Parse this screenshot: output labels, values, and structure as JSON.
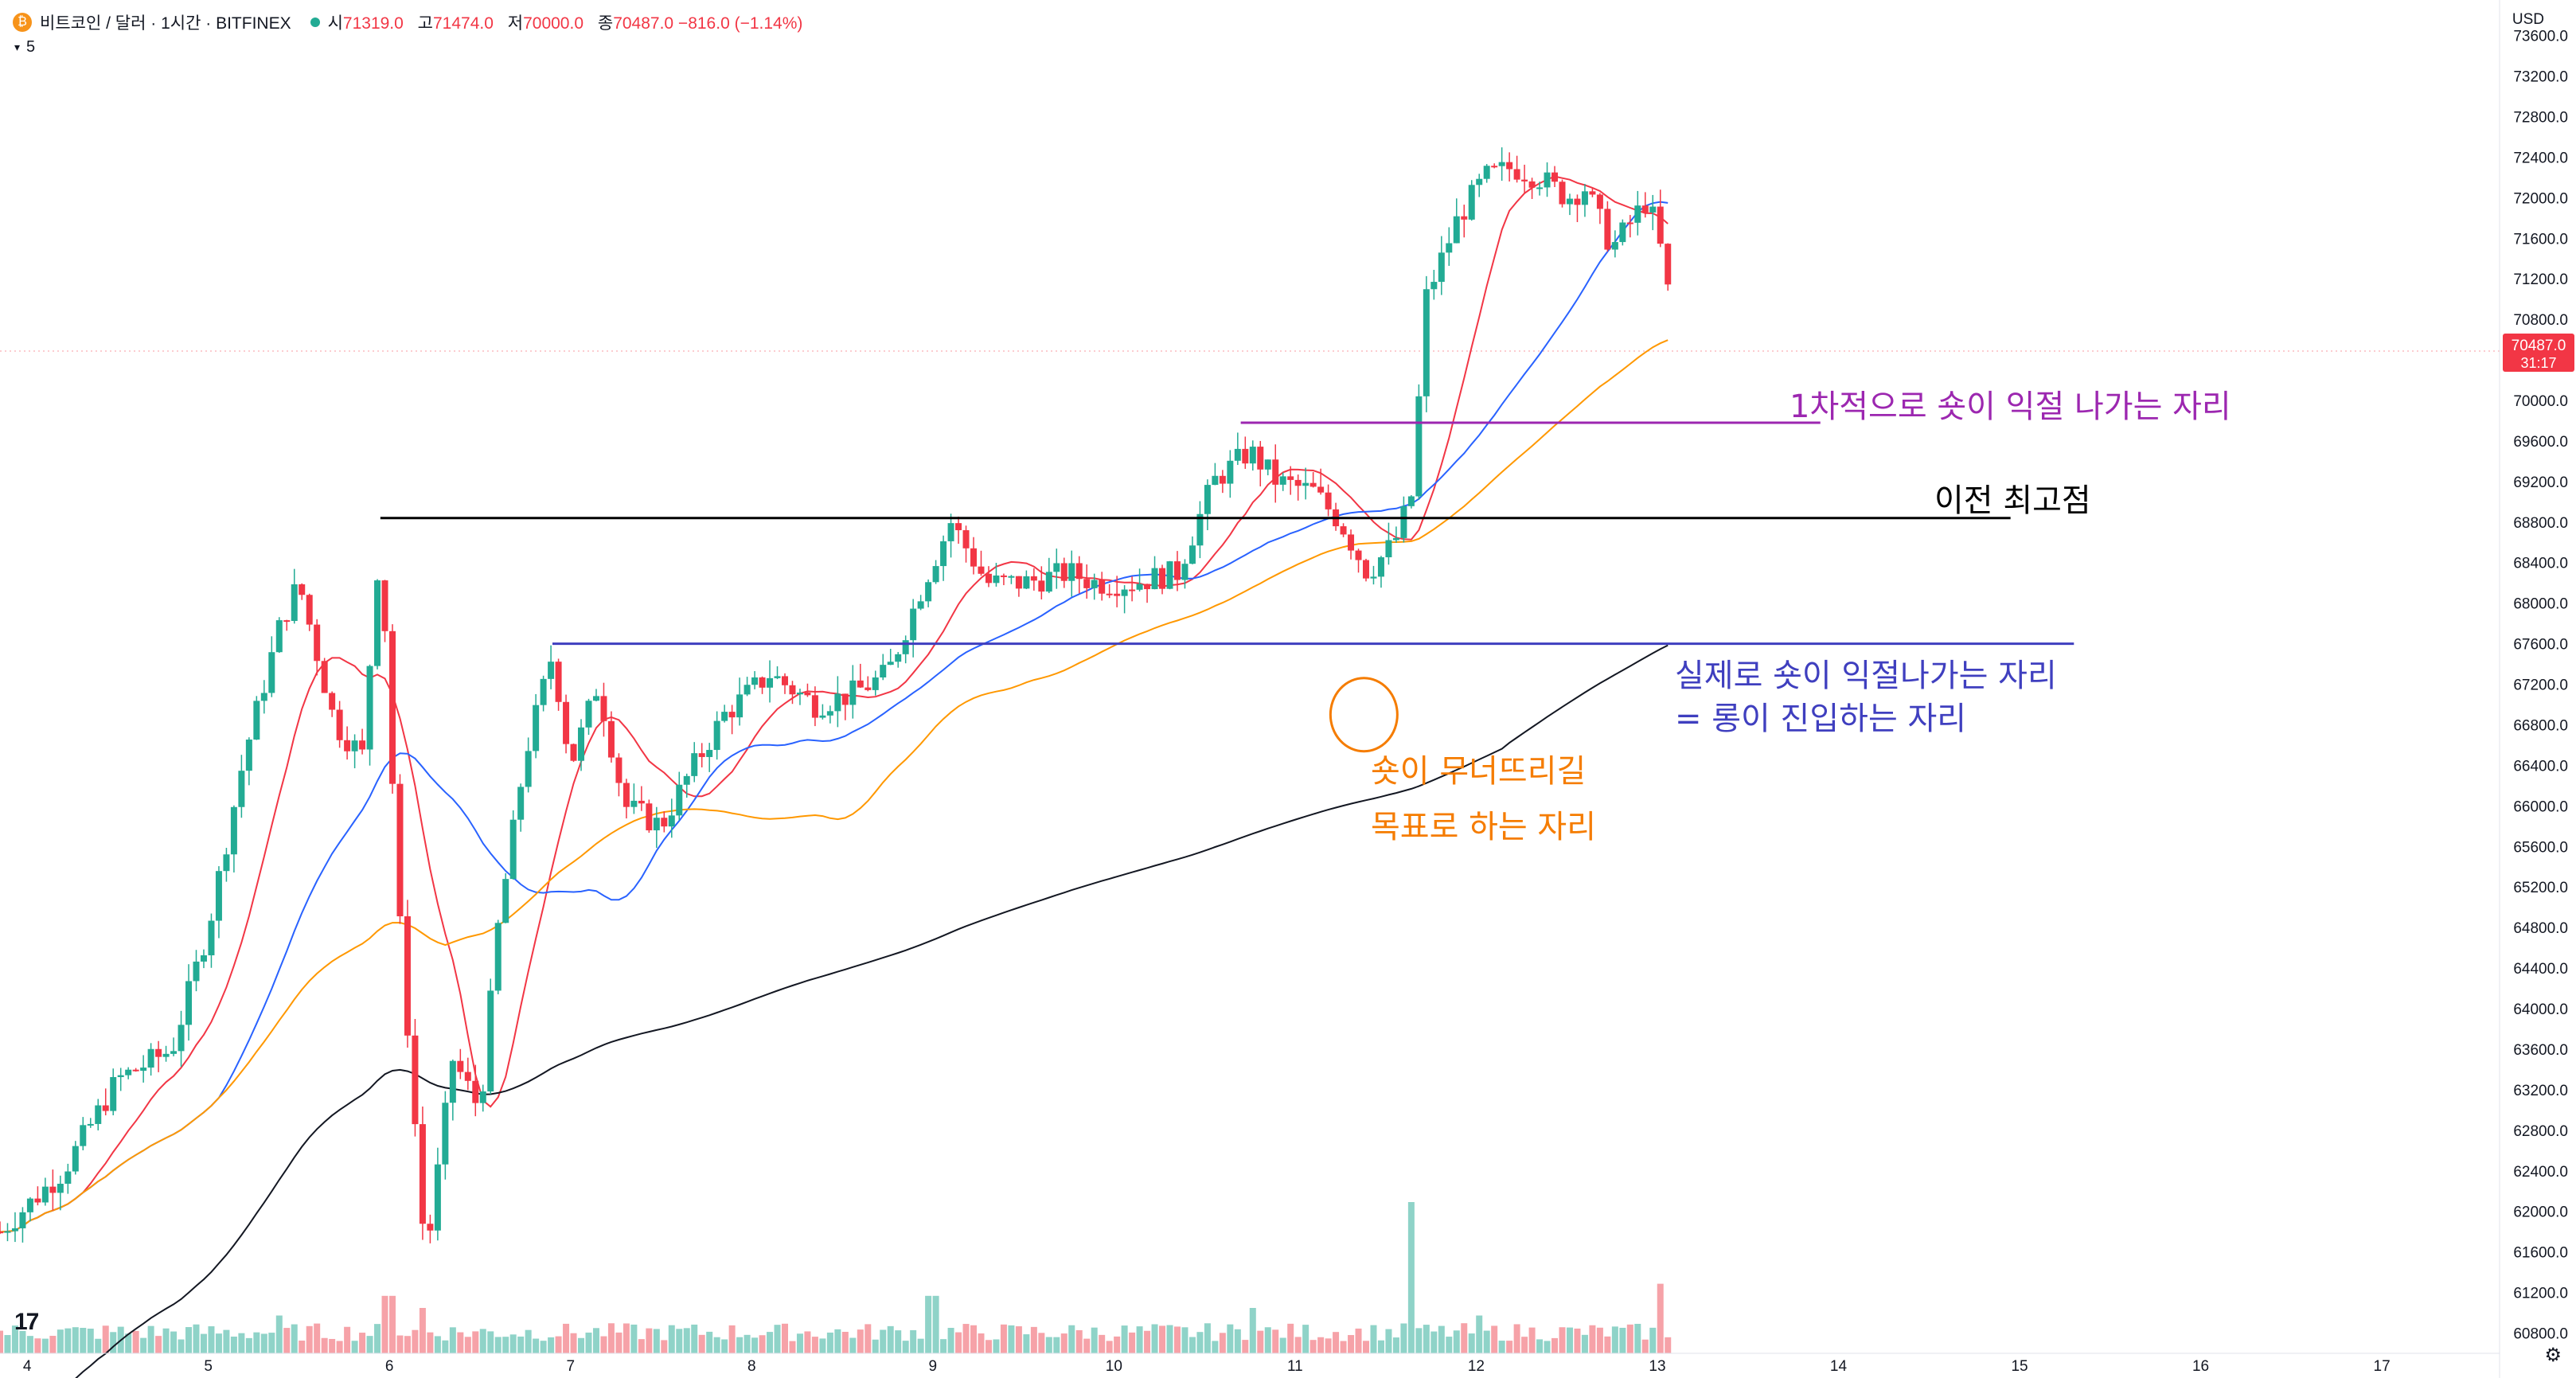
{
  "header": {
    "coin_icon": "bitcoin-icon",
    "symbol_title": "비트코인 / 달러 · 1시간 · BITFINEX",
    "ohlc": [
      {
        "label": "시",
        "value": "71319.0"
      },
      {
        "label": "고",
        "value": "71474.0"
      },
      {
        "label": "저",
        "value": "70000.0"
      },
      {
        "label": "종",
        "value": "70487.0 −816.0 (−1.14%)"
      }
    ],
    "volume_label": "5",
    "currency": "USD"
  },
  "price_tag": {
    "price": "70487.0",
    "countdown": "31:17"
  },
  "colors": {
    "up": "#22ab94",
    "down": "#f23645",
    "up_volume": "#8fd3c8",
    "down_volume": "#f6a2a8",
    "ma_fast": "#f23645",
    "ma_mid": "#2962ff",
    "ma_slow": "#ff9800",
    "ma_long": "#131722",
    "annot_purple": "#9c27b0",
    "annot_blue": "#3f3fbf",
    "annot_orange": "#f57c00",
    "annot_black": "#000000"
  },
  "chart_data": {
    "type": "candlestick",
    "y_ticks": [
      "73600.0",
      "73200.0",
      "72800.0",
      "72400.0",
      "72000.0",
      "71600.0",
      "71200.0",
      "70800.0",
      "70000.0",
      "69600.0",
      "69200.0",
      "68800.0",
      "68400.0",
      "68000.0",
      "67600.0",
      "67200.0",
      "66800.0",
      "66400.0",
      "66000.0",
      "65600.0",
      "65200.0",
      "64800.0",
      "64400.0",
      "64000.0",
      "63600.0",
      "63200.0",
      "62800.0",
      "62400.0",
      "62000.0",
      "61600.0",
      "61200.0",
      "60800.0"
    ],
    "x_ticks": [
      "4",
      "5",
      "6",
      "7",
      "8",
      "9",
      "10",
      "11",
      "12",
      "13",
      "14",
      "15",
      "16",
      "17"
    ],
    "x_tick_positions": [
      4,
      5,
      6,
      7,
      8,
      9,
      10,
      11,
      12,
      13,
      14,
      15,
      16,
      17
    ],
    "y_range": [
      60600,
      73950
    ],
    "x_range": [
      3.85,
      17.65
    ],
    "anchors": [
      [
        3.85,
        61800
      ],
      [
        4.2,
        62400
      ],
      [
        4.5,
        63300
      ],
      [
        4.8,
        63600
      ],
      [
        5.0,
        64800
      ],
      [
        5.2,
        66500
      ],
      [
        5.4,
        67800
      ],
      [
        5.5,
        68200
      ],
      [
        5.7,
        66800
      ],
      [
        5.85,
        66500
      ],
      [
        5.95,
        68700
      ],
      [
        6.05,
        65000
      ],
      [
        6.2,
        61500
      ],
      [
        6.35,
        63500
      ],
      [
        6.5,
        63000
      ],
      [
        6.6,
        64800
      ],
      [
        6.75,
        66500
      ],
      [
        6.9,
        67500
      ],
      [
        7.0,
        66400
      ],
      [
        7.15,
        67200
      ],
      [
        7.3,
        66000
      ],
      [
        7.5,
        65800
      ],
      [
        7.65,
        66300
      ],
      [
        7.85,
        66900
      ],
      [
        8.1,
        67300
      ],
      [
        8.35,
        67000
      ],
      [
        8.55,
        67100
      ],
      [
        8.75,
        67300
      ],
      [
        8.95,
        68200
      ],
      [
        9.1,
        68800
      ],
      [
        9.3,
        68200
      ],
      [
        9.5,
        68200
      ],
      [
        9.75,
        68300
      ],
      [
        9.9,
        68200
      ],
      [
        10.1,
        68200
      ],
      [
        10.35,
        68300
      ],
      [
        10.55,
        69200
      ],
      [
        10.75,
        69500
      ],
      [
        10.9,
        69200
      ],
      [
        11.1,
        69100
      ],
      [
        11.25,
        68800
      ],
      [
        11.4,
        68300
      ],
      [
        11.55,
        68600
      ],
      [
        11.65,
        69100
      ],
      [
        11.72,
        71000
      ],
      [
        11.9,
        71800
      ],
      [
        12.05,
        72200
      ],
      [
        12.2,
        72300
      ],
      [
        12.35,
        72200
      ],
      [
        12.5,
        72000
      ],
      [
        12.6,
        72100
      ],
      [
        12.75,
        71500
      ],
      [
        12.95,
        72000
      ],
      [
        13.0,
        71600
      ],
      [
        13.05,
        71300
      ],
      [
        13.08,
        70500
      ]
    ],
    "volume_peaks": [
      [
        5.4,
        0.25
      ],
      [
        6.0,
        0.38
      ],
      [
        6.2,
        0.3
      ],
      [
        9.0,
        0.38
      ],
      [
        10.75,
        0.3
      ],
      [
        11.65,
        1.0
      ],
      [
        12.0,
        0.25
      ],
      [
        13.0,
        0.46
      ]
    ],
    "moving_averages": [
      {
        "period": 12,
        "color_key": "ma_fast"
      },
      {
        "period": 30,
        "color_key": "ma_mid"
      },
      {
        "period": 60,
        "color_key": "ma_slow"
      },
      {
        "period": 200,
        "color_key": "ma_long"
      }
    ],
    "annotations": {
      "level_purple": {
        "price": 69780,
        "x_from": 10.7,
        "x_to": 13.9,
        "text": "1차적으로 숏이 익절 나가는 자리"
      },
      "level_black": {
        "price": 68840,
        "x_from": 5.95,
        "x_to": 14.95,
        "text": "이전 최고점"
      },
      "level_blue": {
        "price": 67600,
        "x_from": 6.9,
        "x_to": 15.3,
        "text_line1": "실제로 숏이 익절나가는 자리",
        "text_line2": "= 롱이 진입하는 자리"
      },
      "target_circle": {
        "x": 11.38,
        "price": 66900,
        "text_line1": "숏이 무너뜨리길",
        "text_line2": "목표로 하는 자리"
      }
    }
  }
}
